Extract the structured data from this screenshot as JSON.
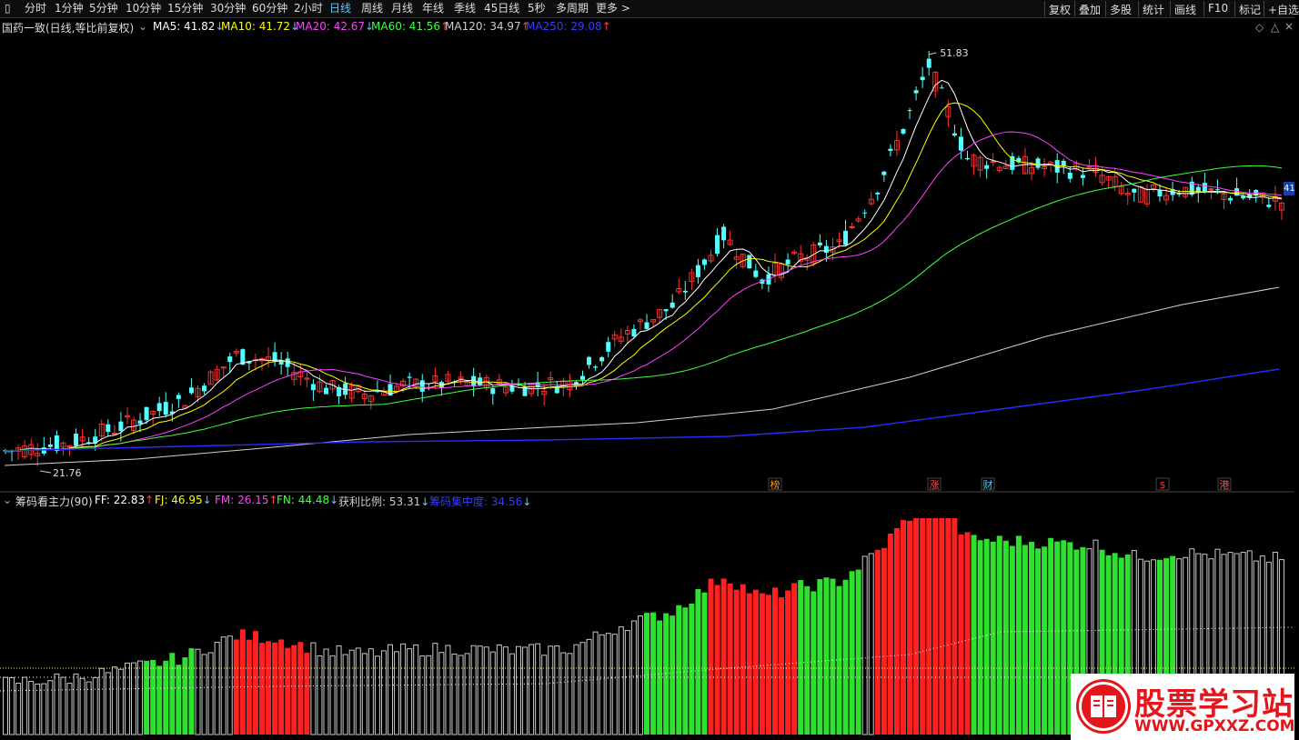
{
  "toolbar": {
    "menu_icon": "square-icon",
    "periods": [
      {
        "label": "分时",
        "active": false
      },
      {
        "label": "1分钟",
        "active": false
      },
      {
        "label": "5分钟",
        "active": false
      },
      {
        "label": "10分钟",
        "active": false
      },
      {
        "label": "15分钟",
        "active": false
      },
      {
        "label": "30分钟",
        "active": false
      },
      {
        "label": "60分钟",
        "active": false
      },
      {
        "label": "2小时",
        "active": false
      },
      {
        "label": "日线",
        "active": true
      },
      {
        "label": "周线",
        "active": false
      },
      {
        "label": "月线",
        "active": false
      },
      {
        "label": "年线",
        "active": false
      },
      {
        "label": "季线",
        "active": false
      },
      {
        "label": "45日线",
        "active": false
      },
      {
        "label": "5秒",
        "active": false
      },
      {
        "label": "多周期",
        "active": false
      },
      {
        "label": "更多 >",
        "active": false
      }
    ],
    "right_buttons": [
      "复权",
      "叠加",
      "多股",
      "统计",
      "画线",
      "F10",
      "标记",
      "+自选"
    ]
  },
  "main_panel": {
    "title": "国药一致(日线,等比前复权)",
    "ma": [
      {
        "label": "MA5: 41.82",
        "arrow": "↓",
        "color": "#ffffff"
      },
      {
        "label": "MA10: 41.72",
        "arrow": "↓",
        "color": "#ffff00"
      },
      {
        "label": "MA20: 42.67",
        "arrow": "↓",
        "color": "#ff40ff"
      },
      {
        "label": "MA60: 41.56",
        "arrow": "↑",
        "color": "#40ff40"
      },
      {
        "label": "MA120: 34.97",
        "arrow": "↑",
        "color": "#cccccc"
      },
      {
        "label": "MA250: 29.08",
        "arrow": "↑",
        "color": "#3a3aff"
      }
    ],
    "high_label": "51.83",
    "low_label": "21.76",
    "price_tag": "41",
    "markers": [
      {
        "text": "榜",
        "color": "#ff9900"
      },
      {
        "text": "涨",
        "color": "#ff5050"
      },
      {
        "text": "财",
        "color": "#56c8ff"
      },
      {
        "text": "$",
        "color": "#ff3030"
      },
      {
        "text": "港",
        "color": "#ff5050"
      }
    ]
  },
  "sub_panel": {
    "title": "筹码看主力(90)",
    "values": [
      {
        "label": "FF: 22.83",
        "arrow": "↑",
        "color": "#ffffff"
      },
      {
        "label": "FJ: 46.95",
        "arrow": "↓",
        "color": "#ffff00"
      },
      {
        "label": "FM: 26.15",
        "arrow": "↑",
        "color": "#ff40ff"
      },
      {
        "label": "FN: 44.48",
        "arrow": "↓",
        "color": "#40ff40"
      },
      {
        "label": "获利比例: 53.31",
        "arrow": "↓",
        "color": "#cccccc"
      },
      {
        "label": "筹码集中度: 34.56",
        "arrow": "↓",
        "color": "#3a3aff"
      }
    ]
  },
  "watermark": {
    "title": "股票学习站",
    "url": "WWW.GPXXZ.COM"
  },
  "chart_data": {
    "type": "candlestick",
    "price_range": [
      21.76,
      51.83
    ],
    "high": 51.83,
    "low": 21.76,
    "last_ma": {
      "MA5": 41.82,
      "MA10": 41.72,
      "MA20": 42.67,
      "MA60": 41.56,
      "MA120": 34.97,
      "MA250": 29.08
    },
    "sub_indicator": {
      "FF": 22.83,
      "FJ": 46.95,
      "FM": 26.15,
      "FN": 44.48,
      "获利比例": 53.31,
      "筹码集中度": 34.56
    }
  }
}
